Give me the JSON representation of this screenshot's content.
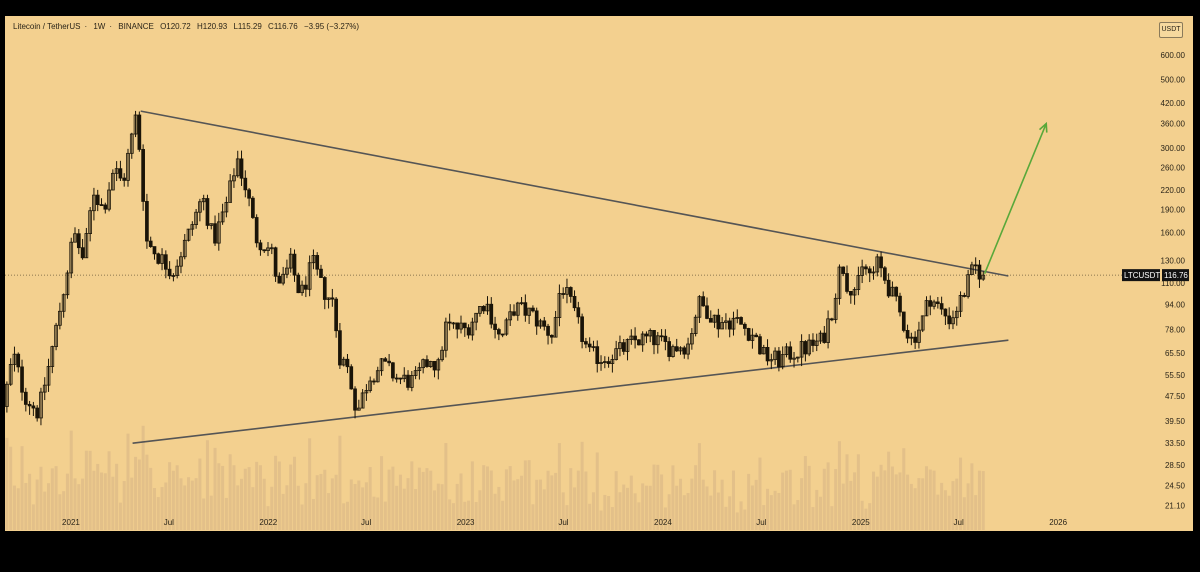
{
  "header": {
    "symbol": "Litecoin / TetherUS",
    "interval": "1W",
    "exchange": "BINANCE",
    "open": "O120.72",
    "high": "H120.93",
    "low": "L115.29",
    "close": "C116.76",
    "change": "−3.95 (−3.27%)"
  },
  "currency_badge": "USDT",
  "price_tag": {
    "label": "LTCUSDT",
    "value": "116.76"
  },
  "colors": {
    "background": "#f3d08f",
    "candle": "#1a1408",
    "trendline": "#555555",
    "arrow": "#59a83a",
    "volume": "#e3c089"
  },
  "chart_data": {
    "type": "candlestick",
    "title": "Litecoin / TetherUS · 1W · BINANCE",
    "y_scale": "log",
    "ylim": [
      19.5,
      680
    ],
    "y_ticks": [
      "600.00",
      "500.00",
      "420.00",
      "360.00",
      "300.00",
      "260.00",
      "220.00",
      "190.00",
      "160.00",
      "130.00",
      "110.00",
      "94.00",
      "78.00",
      "65.50",
      "55.50",
      "47.50",
      "39.50",
      "33.50",
      "28.50",
      "24.50",
      "21.10"
    ],
    "x_ticks": [
      {
        "label": "2021",
        "date": "2021-01-01"
      },
      {
        "label": "Jul",
        "date": "2021-07-01"
      },
      {
        "label": "2022",
        "date": "2022-01-01"
      },
      {
        "label": "Jul",
        "date": "2022-07-01"
      },
      {
        "label": "2023",
        "date": "2023-01-01"
      },
      {
        "label": "Jul",
        "date": "2023-07-01"
      },
      {
        "label": "2024",
        "date": "2024-01-01"
      },
      {
        "label": "Jul",
        "date": "2024-07-01"
      },
      {
        "label": "2025",
        "date": "2025-01-01"
      },
      {
        "label": "Jul",
        "date": "2025-07-01"
      },
      {
        "label": "2026",
        "date": "2026-01-01"
      }
    ],
    "xlim": [
      "2020-09-01",
      "2026-05-01"
    ],
    "price_path": [
      [
        "2020-09-01",
        44
      ],
      [
        "2020-09-20",
        65
      ],
      [
        "2020-10-10",
        48
      ],
      [
        "2020-11-05",
        42
      ],
      [
        "2020-11-25",
        60
      ],
      [
        "2020-12-20",
        100
      ],
      [
        "2021-01-10",
        160
      ],
      [
        "2021-01-28",
        130
      ],
      [
        "2021-02-15",
        220
      ],
      [
        "2021-03-05",
        190
      ],
      [
        "2021-03-25",
        260
      ],
      [
        "2021-04-10",
        230
      ],
      [
        "2021-05-06",
        390
      ],
      [
        "2021-05-25",
        150
      ],
      [
        "2021-06-15",
        135
      ],
      [
        "2021-07-12",
        120
      ],
      [
        "2021-08-05",
        150
      ],
      [
        "2021-09-05",
        210
      ],
      [
        "2021-09-25",
        150
      ],
      [
        "2021-10-20",
        200
      ],
      [
        "2021-11-08",
        280
      ],
      [
        "2021-11-28",
        210
      ],
      [
        "2021-12-12",
        155
      ],
      [
        "2022-01-10",
        140
      ],
      [
        "2022-01-24",
        105
      ],
      [
        "2022-02-15",
        128
      ],
      [
        "2022-03-05",
        100
      ],
      [
        "2022-03-28",
        128
      ],
      [
        "2022-04-15",
        105
      ],
      [
        "2022-05-05",
        95
      ],
      [
        "2022-05-15",
        65
      ],
      [
        "2022-06-01",
        58
      ],
      [
        "2022-06-18",
        42
      ],
      [
        "2022-07-10",
        55
      ],
      [
        "2022-08-05",
        60
      ],
      [
        "2022-09-01",
        54
      ],
      [
        "2022-10-01",
        53
      ],
      [
        "2022-11-05",
        65
      ],
      [
        "2022-11-12",
        55
      ],
      [
        "2022-11-28",
        80
      ],
      [
        "2023-01-05",
        78
      ],
      [
        "2023-02-10",
        97
      ],
      [
        "2023-03-10",
        72
      ],
      [
        "2023-04-05",
        92
      ],
      [
        "2023-05-05",
        88
      ],
      [
        "2023-05-25",
        80
      ],
      [
        "2023-06-15",
        75
      ],
      [
        "2023-06-30",
        110
      ],
      [
        "2023-07-20",
        92
      ],
      [
        "2023-08-20",
        65
      ],
      [
        "2023-09-15",
        63
      ],
      [
        "2023-10-20",
        67
      ],
      [
        "2023-11-15",
        72
      ],
      [
        "2023-12-15",
        73
      ],
      [
        "2024-01-20",
        68
      ],
      [
        "2024-02-20",
        70
      ],
      [
        "2024-03-10",
        95
      ],
      [
        "2024-03-28",
        90
      ],
      [
        "2024-04-15",
        82
      ],
      [
        "2024-05-15",
        84
      ],
      [
        "2024-06-20",
        75
      ],
      [
        "2024-07-10",
        64
      ],
      [
        "2024-08-05",
        62
      ],
      [
        "2024-08-25",
        65
      ],
      [
        "2024-09-25",
        68
      ],
      [
        "2024-10-25",
        72
      ],
      [
        "2024-11-12",
        90
      ],
      [
        "2024-11-30",
        130
      ],
      [
        "2024-12-10",
        110
      ],
      [
        "2024-12-28",
        105
      ],
      [
        "2025-01-10",
        125
      ],
      [
        "2025-01-25",
        115
      ],
      [
        "2025-02-05",
        128
      ],
      [
        "2025-03-10",
        95
      ],
      [
        "2025-04-07",
        72
      ],
      [
        "2025-04-25",
        80
      ],
      [
        "2025-05-12",
        100
      ],
      [
        "2025-06-05",
        88
      ],
      [
        "2025-06-20",
        84
      ],
      [
        "2025-07-10",
        98
      ],
      [
        "2025-07-28",
        118
      ],
      [
        "2025-08-04",
        124
      ],
      [
        "2025-08-18",
        116.76
      ]
    ],
    "trendlines": [
      {
        "name": "upper",
        "from": [
          "2021-05-10",
          395
        ],
        "to": [
          "2025-10-01",
          116
        ]
      },
      {
        "name": "lower",
        "from": [
          "2021-04-25",
          33.5
        ],
        "to": [
          "2025-10-01",
          72
        ]
      }
    ],
    "projection_arrow": {
      "from": [
        "2025-08-18",
        118
      ],
      "to": [
        "2025-12-10",
        360
      ]
    },
    "last_price_line": 116.76
  }
}
